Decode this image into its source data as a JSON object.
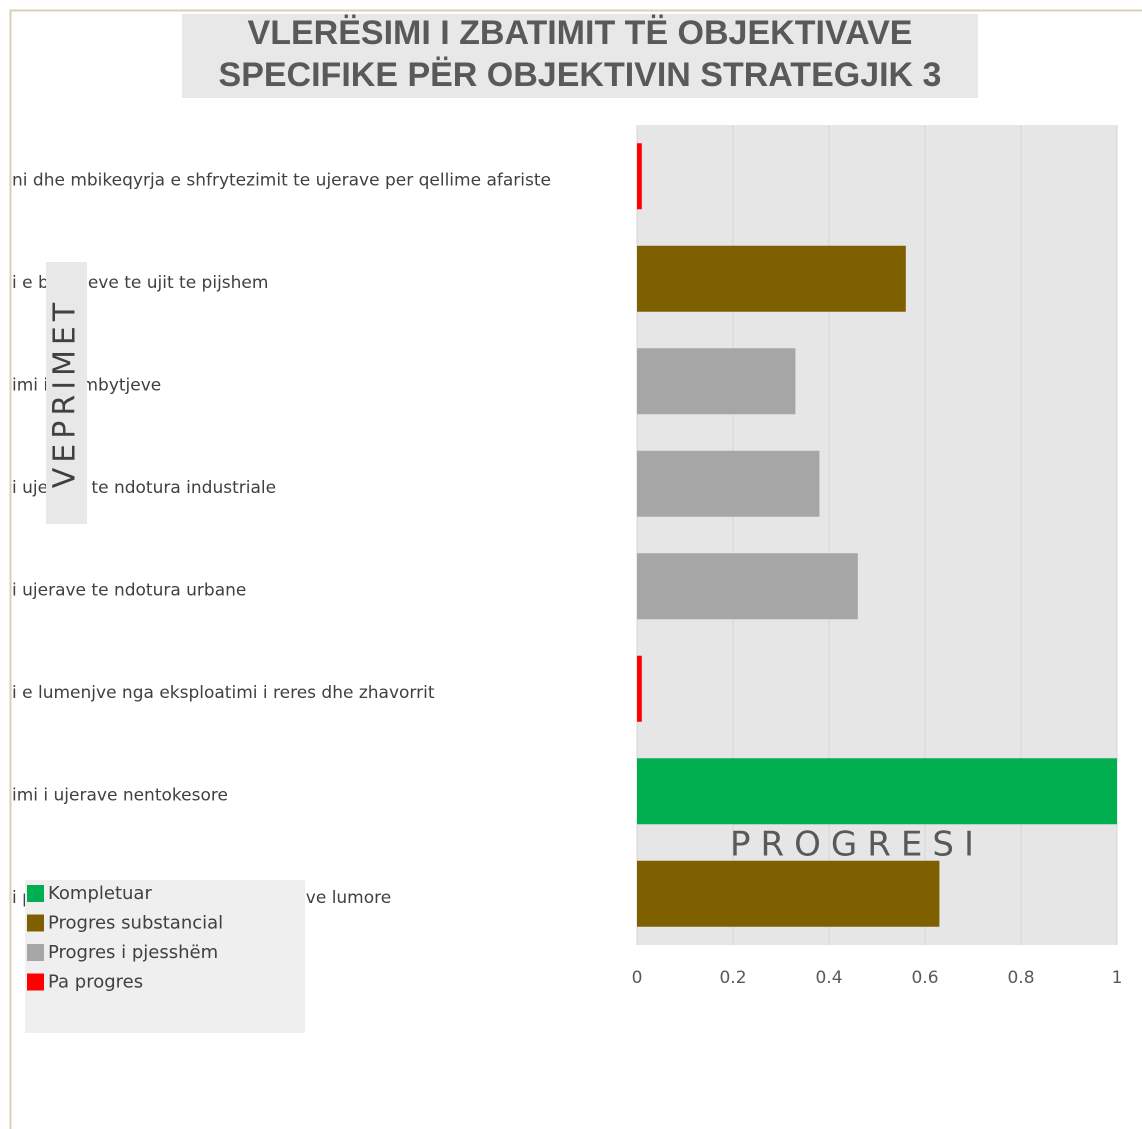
{
  "chart_data": {
    "type": "barh",
    "title": [
      "VLERËSIMI I ZBATIMIT TË OBJEKTIVAVE",
      "SPECIFIKE PËR OBJEKTIVIN STRATEGJIK 3"
    ],
    "ylabel": "VEPRIMET",
    "xlabel": "PROGRESI",
    "categories": [
      "ni dhe mbikeqyrja e shfrytezimit te ujerave per qellime afariste",
      "i e burimeve te ujit te pijshem",
      "imi i permbytjeve",
      "i ujerave te ndotura industriale",
      "i ujerave te ndotura urbane",
      "i e lumenjve nga eksploatimi i reres dhe zhavorrit",
      "imi i ujerave nentokesore",
      "i pastrimit te shtreterve dhe brigjeve lumore"
    ],
    "values": [
      0.01,
      0.56,
      0.33,
      0.38,
      0.46,
      0.01,
      1,
      0.63
    ],
    "colors": [
      "#ff0000",
      "#7f6000",
      "#a6a6a6",
      "#a6a6a6",
      "#a6a6a6",
      "#ff0000",
      "#00b050",
      "#7f6000"
    ],
    "legend": [
      {
        "name": "Kompletuar",
        "color": "#00b050"
      },
      {
        "name": "Progres substancial",
        "color": "#7f6000"
      },
      {
        "name": "Progres i pjesshëm",
        "color": "#a6a6a6"
      },
      {
        "name": "Pa progres",
        "color": "#ff0000"
      }
    ],
    "xlim": [
      0,
      1
    ],
    "xticks": [
      0,
      0.2,
      0.4,
      0.6,
      0.8,
      1
    ],
    "grid": true
  }
}
